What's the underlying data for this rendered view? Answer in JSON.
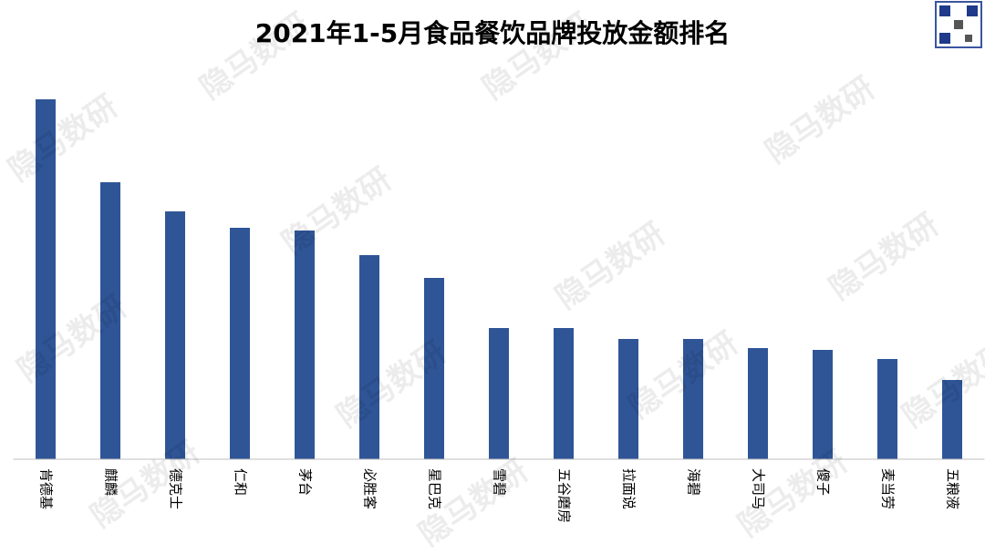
{
  "chart_data": {
    "type": "bar",
    "title": "2021年1-5月食品餐饮品牌投放金额排名",
    "categories": [
      "肯德基",
      "麒麟",
      "德克士",
      "仁和",
      "茅台",
      "必胜客",
      "星巴克",
      "雪碧",
      "五谷磨房",
      "拉面说",
      "海碧",
      "大司马",
      "傻子",
      "麦当劳",
      "五粮液"
    ],
    "values": [
      395,
      304,
      272,
      254,
      251,
      224,
      199,
      144,
      144,
      132,
      132,
      122,
      120,
      110,
      87
    ],
    "color": "#2f5597",
    "ylim": [
      0,
      400
    ]
  },
  "watermark": "隐马数研"
}
